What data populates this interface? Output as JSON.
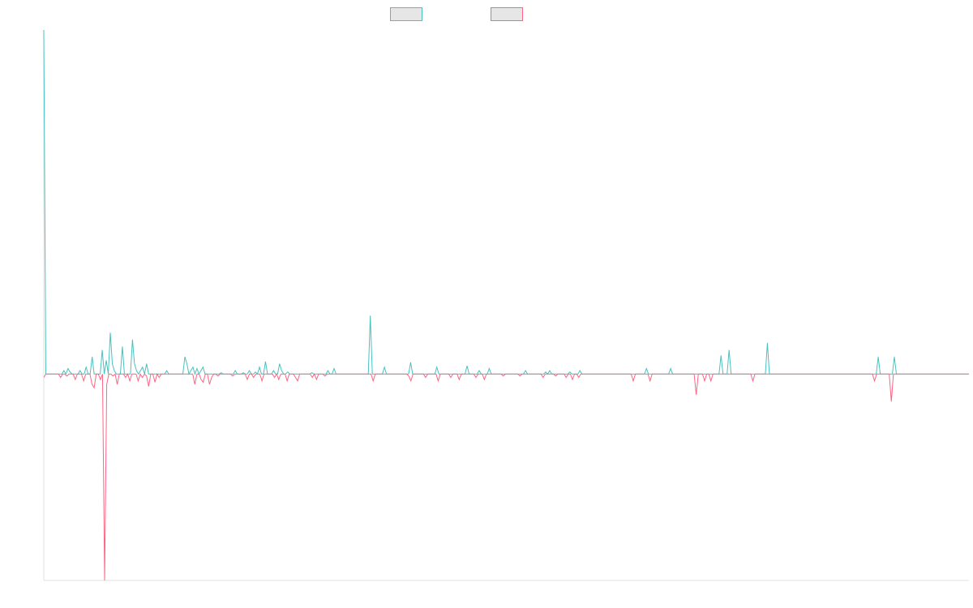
{
  "chart_data": {
    "type": "line",
    "title": "",
    "xlabel": "",
    "ylabel": "",
    "grid": false,
    "legend_position": "top-center",
    "colors": {
      "series_a": "#4bc0c0",
      "series_b": "#ff6384",
      "legend_fill": "#e6e6e6",
      "axis": "#e0e0e0"
    },
    "ylim": [
      -300,
      500
    ],
    "series": [
      {
        "values": [
          500,
          0,
          0,
          0,
          0,
          0,
          0,
          0,
          0,
          0,
          5,
          0,
          8,
          3,
          0,
          0,
          0,
          0,
          5,
          0,
          0,
          10,
          0,
          0,
          25,
          0,
          0,
          0,
          0,
          35,
          0,
          20,
          0,
          60,
          15,
          5,
          0,
          0,
          0,
          40,
          0,
          0,
          0,
          0,
          50,
          15,
          5,
          0,
          5,
          10,
          0,
          15,
          0,
          0,
          0,
          0,
          0,
          0,
          0,
          0,
          0,
          5,
          0,
          0,
          0,
          0,
          0,
          0,
          0,
          0,
          25,
          15,
          0,
          5,
          10,
          0,
          8,
          0,
          5,
          10,
          0,
          0,
          0,
          0,
          0,
          0,
          0,
          0,
          2,
          0,
          0,
          0,
          0,
          0,
          0,
          5,
          0,
          0,
          0,
          2,
          0,
          0,
          5,
          0,
          0,
          3,
          0,
          10,
          0,
          0,
          18,
          0,
          0,
          0,
          5,
          0,
          0,
          15,
          5,
          0,
          0,
          3,
          0,
          0,
          0,
          0,
          0,
          0,
          0,
          0,
          0,
          0,
          0,
          2,
          0,
          0,
          0,
          0,
          0,
          0,
          0,
          5,
          0,
          0,
          8,
          0,
          0,
          0,
          0,
          0,
          0,
          0,
          0,
          0,
          0,
          0,
          0,
          0,
          0,
          0,
          0,
          0,
          85,
          0,
          0,
          0,
          0,
          0,
          0,
          10,
          0,
          0,
          0,
          0,
          0,
          0,
          0,
          0,
          0,
          0,
          0,
          0,
          17,
          0,
          0,
          0,
          0,
          0,
          0,
          0,
          0,
          0,
          0,
          0,
          0,
          10,
          0,
          0,
          0,
          0,
          0,
          0,
          0,
          0,
          0,
          0,
          0,
          0,
          0,
          0,
          12,
          0,
          0,
          0,
          0,
          0,
          5,
          0,
          0,
          0,
          0,
          8,
          0,
          0,
          0,
          0,
          0,
          0,
          0,
          0,
          0,
          0,
          0,
          0,
          0,
          0,
          0,
          0,
          0,
          5,
          0,
          0,
          0,
          0,
          0,
          0,
          0,
          0,
          0,
          3,
          0,
          5,
          0,
          0,
          0,
          0,
          0,
          0,
          0,
          0,
          0,
          3,
          0,
          0,
          0,
          0,
          5,
          0,
          0,
          0,
          0,
          0,
          0,
          0,
          0,
          0,
          0,
          0,
          0,
          0,
          0,
          0,
          0,
          0,
          0,
          0,
          0,
          0,
          0,
          0,
          0,
          0,
          0,
          0,
          0,
          0,
          0,
          0,
          0,
          8,
          0,
          0,
          0,
          0,
          0,
          0,
          0,
          0,
          0,
          0,
          0,
          8,
          0,
          0,
          0,
          0,
          0,
          0,
          0,
          0,
          0,
          0,
          0,
          0,
          0,
          0,
          0,
          0,
          0,
          0,
          0,
          0,
          0,
          0,
          0,
          0,
          27,
          0,
          0,
          0,
          35,
          0,
          0,
          0,
          0,
          0,
          0,
          0,
          0,
          0,
          0,
          0,
          0,
          0,
          0,
          0,
          0,
          0,
          0,
          45,
          0,
          0,
          0,
          0,
          0,
          0,
          0,
          0,
          0,
          0,
          0,
          0,
          0,
          0,
          0,
          0,
          0,
          0,
          0,
          0,
          0,
          0,
          0,
          0,
          0,
          0,
          0,
          0,
          0,
          0,
          0,
          0,
          0,
          0,
          0,
          0,
          0,
          0,
          0,
          0,
          0,
          0,
          0,
          0,
          0,
          0,
          0,
          0,
          0,
          0,
          0,
          0,
          0,
          0,
          25,
          0,
          0,
          0,
          0,
          0,
          0,
          0,
          25,
          0,
          0,
          0,
          0,
          0,
          0,
          0,
          0,
          0,
          0,
          0,
          0,
          0,
          0,
          0,
          0,
          0,
          0,
          0,
          0,
          0,
          0,
          0,
          0,
          0,
          0,
          0,
          0,
          0,
          0,
          0,
          0,
          0,
          0,
          0,
          0,
          0
        ]
      },
      {
        "values": [
          -5,
          0,
          0,
          0,
          0,
          0,
          0,
          0,
          -5,
          0,
          0,
          -3,
          0,
          0,
          0,
          -8,
          0,
          0,
          0,
          -10,
          0,
          0,
          0,
          -15,
          -20,
          0,
          0,
          -8,
          0,
          -300,
          -15,
          0,
          0,
          -3,
          0,
          -15,
          0,
          0,
          0,
          -5,
          0,
          -10,
          0,
          0,
          0,
          -10,
          0,
          -5,
          0,
          -3,
          -18,
          0,
          0,
          -12,
          0,
          -5,
          0,
          0,
          0,
          0,
          0,
          0,
          0,
          0,
          0,
          0,
          0,
          0,
          0,
          0,
          0,
          0,
          -15,
          0,
          0,
          -8,
          -12,
          0,
          0,
          -15,
          -5,
          0,
          0,
          -3,
          0,
          0,
          0,
          0,
          0,
          0,
          -3,
          0,
          0,
          0,
          0,
          0,
          0,
          -8,
          0,
          0,
          -5,
          0,
          0,
          0,
          -10,
          0,
          0,
          0,
          0,
          0,
          -5,
          0,
          -8,
          0,
          0,
          0,
          -10,
          0,
          0,
          0,
          -5,
          -10,
          0,
          0,
          0,
          0,
          0,
          0,
          -5,
          0,
          -8,
          0,
          0,
          0,
          -3,
          0,
          0,
          0,
          0,
          0,
          0,
          0,
          0,
          0,
          0,
          0,
          0,
          0,
          0,
          0,
          0,
          0,
          0,
          0,
          0,
          0,
          0,
          -10,
          0,
          0,
          0,
          0,
          0,
          0,
          0,
          0,
          0,
          0,
          0,
          0,
          0,
          0,
          0,
          0,
          -3,
          -10,
          0,
          0,
          0,
          0,
          0,
          0,
          -5,
          0,
          0,
          0,
          0,
          0,
          -10,
          0,
          0,
          0,
          0,
          0,
          -5,
          0,
          0,
          0,
          -8,
          0,
          0,
          0,
          0,
          0,
          0,
          0,
          -5,
          0,
          0,
          0,
          -8,
          0,
          0,
          0,
          0,
          0,
          0,
          0,
          0,
          -3,
          0,
          0,
          0,
          0,
          0,
          0,
          0,
          -3,
          0,
          0,
          0,
          0,
          0,
          0,
          0,
          0,
          0,
          0,
          -5,
          0,
          0,
          0,
          0,
          0,
          -3,
          0,
          0,
          0,
          0,
          -5,
          0,
          0,
          -8,
          0,
          0,
          -5,
          0,
          0,
          0,
          0,
          0,
          0,
          0,
          0,
          0,
          0,
          0,
          0,
          0,
          0,
          0,
          0,
          0,
          0,
          0,
          0,
          0,
          0,
          0,
          0,
          0,
          -10,
          0,
          0,
          0,
          0,
          0,
          0,
          0,
          -10,
          0,
          0,
          0,
          0,
          0,
          0,
          0,
          0,
          0,
          0,
          0,
          0,
          0,
          0,
          0,
          0,
          0,
          0,
          0,
          0,
          0,
          -30,
          0,
          0,
          0,
          -10,
          0,
          0,
          -10,
          0,
          0,
          0,
          0,
          0,
          0,
          0,
          0,
          0,
          0,
          0,
          0,
          0,
          0,
          0,
          0,
          0,
          0,
          0,
          -10,
          0,
          0,
          0,
          0,
          0,
          0,
          0,
          0,
          0,
          0,
          0,
          0,
          0,
          0,
          0,
          0,
          0,
          0,
          0,
          0,
          0,
          0,
          0,
          0,
          0,
          0,
          0,
          0,
          0,
          0,
          0,
          0,
          0,
          0,
          0,
          0,
          0,
          0,
          0,
          0,
          0,
          0,
          0,
          0,
          0,
          0,
          0,
          0,
          0,
          0,
          0,
          0,
          0,
          0,
          0,
          0,
          0,
          -10,
          0,
          0,
          0,
          0,
          0,
          0,
          0,
          -40,
          0,
          0,
          0,
          0,
          0,
          0,
          0,
          0,
          0,
          0,
          0,
          0,
          0,
          0,
          0,
          0,
          0,
          0,
          0,
          0,
          0,
          0,
          0,
          0,
          0,
          0,
          0,
          0,
          0,
          0,
          0,
          0,
          0,
          0,
          0,
          0,
          0
        ]
      }
    ]
  }
}
